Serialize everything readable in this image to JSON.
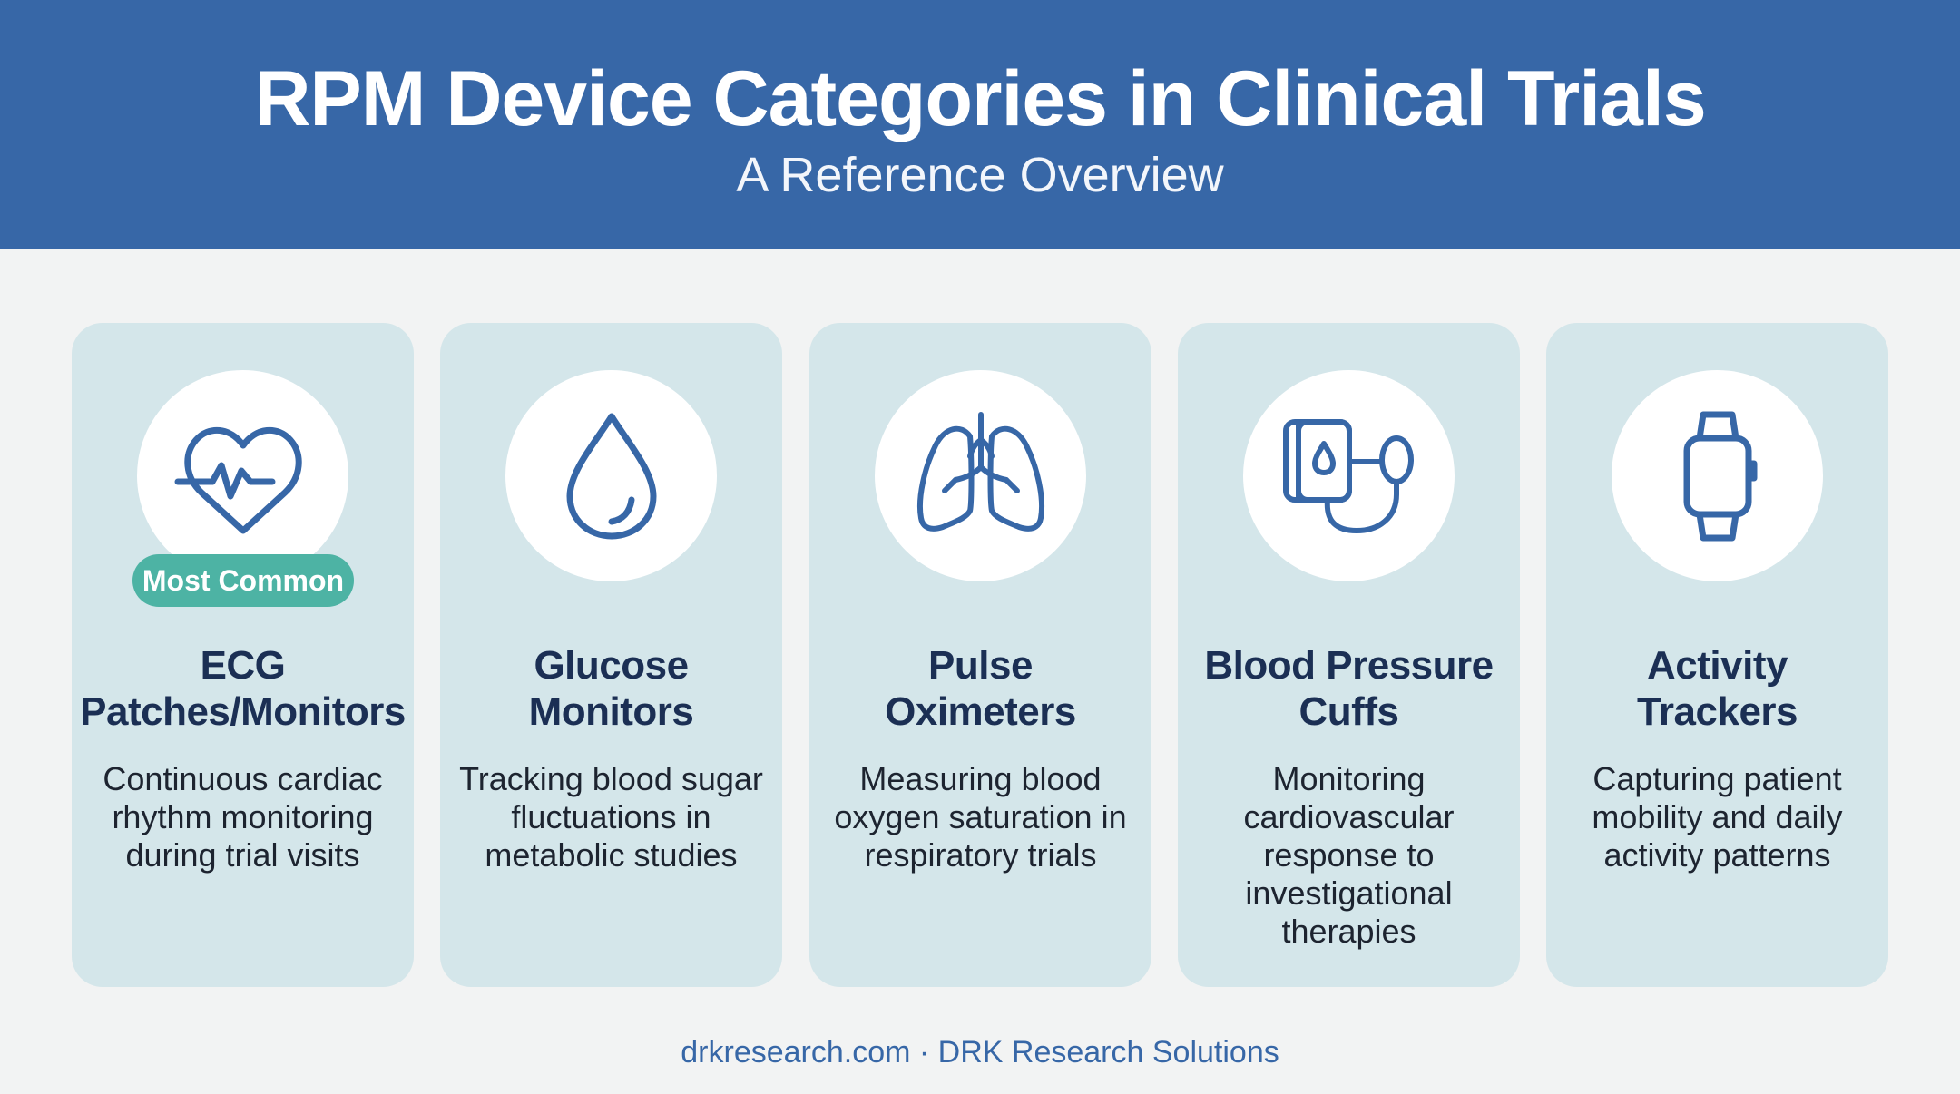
{
  "header": {
    "title": "RPM Device Categories in Clinical Trials",
    "subtitle": "A Reference Overview"
  },
  "colors": {
    "header_bg": "#3767a7",
    "card_bg": "#d4e6ea",
    "icon_stroke": "#3767a7",
    "badge_bg": "#4db3a4",
    "title_text": "#1b2f54"
  },
  "cards": [
    {
      "icon": "heart-ecg-icon",
      "badge": "Most Common",
      "title_line1": "ECG",
      "title_line2": "Patches/Monitors",
      "desc_line1": "Continuous cardiac",
      "desc_line2": "rhythm monitoring",
      "desc_line3": "during trial visits"
    },
    {
      "icon": "droplet-icon",
      "title_line1": "Glucose",
      "title_line2": "Monitors",
      "desc_line1": "Tracking blood sugar",
      "desc_line2": "fluctuations in",
      "desc_line3": "metabolic studies"
    },
    {
      "icon": "lungs-icon",
      "title_line1": "Pulse",
      "title_line2": "Oximeters",
      "desc_line1": "Measuring blood",
      "desc_line2": "oxygen saturation in",
      "desc_line3": "respiratory trials"
    },
    {
      "icon": "blood-pressure-cuff-icon",
      "title_line1": "Blood Pressure",
      "title_line2": "Cuffs",
      "desc_line1": "Monitoring",
      "desc_line2": "cardiovascular",
      "desc_line3": "response to",
      "desc_line4": "investigational",
      "desc_line5": "therapies"
    },
    {
      "icon": "smartwatch-icon",
      "title_line1": "Activity",
      "title_line2": "Trackers",
      "desc_line1": "Capturing patient",
      "desc_line2": "mobility and daily",
      "desc_line3": "activity patterns"
    }
  ],
  "footer": {
    "text": "drkresearch.com · DRK Research Solutions"
  }
}
